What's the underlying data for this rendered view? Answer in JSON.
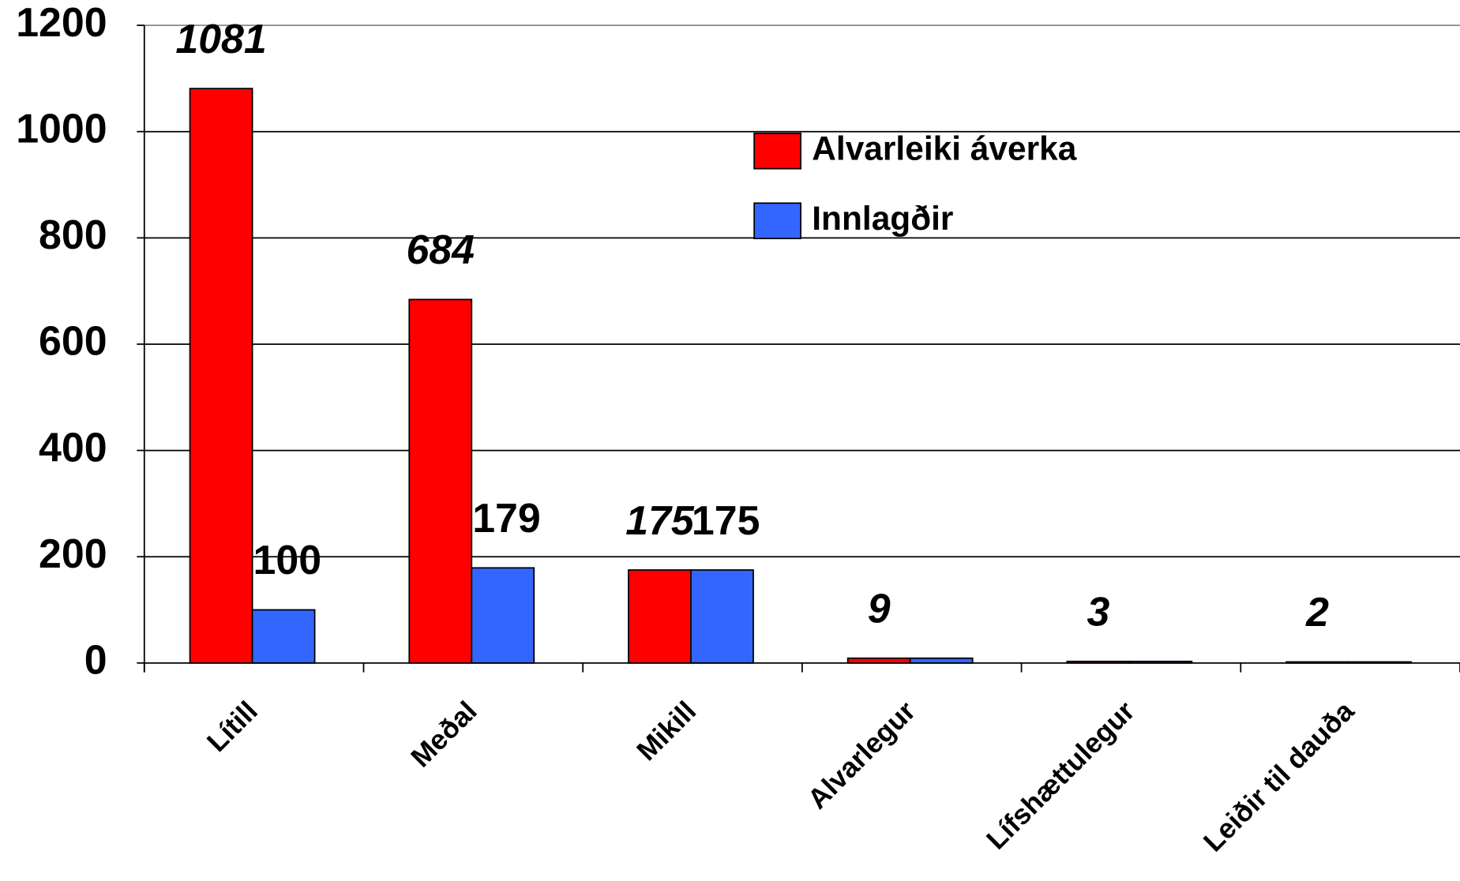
{
  "chart_data": {
    "type": "bar",
    "categories": [
      "Lítill",
      "Meðal",
      "Mikill",
      "Alvarlegur",
      "Lífshættulegur",
      "Leiðir til dauða"
    ],
    "series": [
      {
        "name": "Alvarleiki áverka",
        "color": "#ff0000",
        "values": [
          1081,
          684,
          175,
          9,
          3,
          2
        ]
      },
      {
        "name": "Innlagðir",
        "color": "#3366ff",
        "values": [
          100,
          179,
          175,
          9,
          3,
          2
        ],
        "value_labels": [
          "100",
          "179",
          "175",
          null,
          null,
          null
        ]
      }
    ],
    "ylim": [
      0,
      1200
    ],
    "yticks": [
      0,
      200,
      400,
      600,
      800,
      1000,
      1200
    ],
    "grid": true
  }
}
